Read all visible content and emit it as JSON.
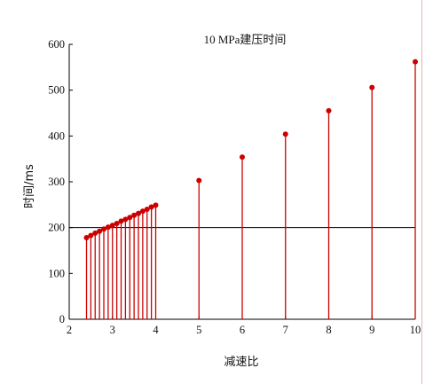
{
  "chart_data": {
    "type": "stem",
    "title": "10 MPa建压时间",
    "xlabel": "减速比",
    "ylabel": "时间/ms",
    "xlim": [
      2,
      10
    ],
    "ylim": [
      0,
      600
    ],
    "xticks": [
      2,
      3,
      4,
      5,
      6,
      7,
      8,
      9,
      10
    ],
    "yticks": [
      0,
      100,
      200,
      300,
      400,
      500,
      600
    ],
    "grid": false,
    "series": [
      {
        "x": [
          2.4,
          2.5,
          2.6,
          2.7,
          2.8,
          2.9,
          3.0,
          3.1,
          3.2,
          3.3,
          3.4,
          3.5,
          3.6,
          3.7,
          3.8,
          3.9,
          4.0,
          5,
          6,
          7,
          8,
          9,
          10
        ],
        "y": [
          178,
          183,
          188,
          192,
          197,
          201,
          205,
          209,
          214,
          218,
          222,
          227,
          231,
          236,
          240,
          245,
          249,
          303,
          354,
          404,
          455,
          506,
          562
        ],
        "color": "#cc0000"
      }
    ],
    "reference_line": {
      "y": 200,
      "color": "#000000"
    }
  }
}
